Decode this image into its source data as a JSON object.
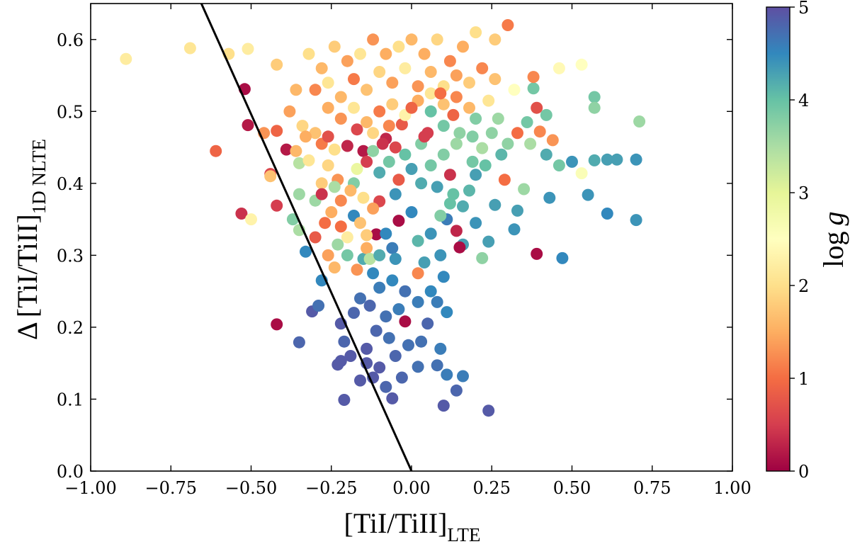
{
  "chart_data": {
    "type": "scatter",
    "title": "",
    "xlabel": "[TiI/TiII]",
    "xlabel_subscript": "LTE",
    "ylabel_prefix": "Δ",
    "ylabel": "[TiI/TiII]",
    "ylabel_subscript": "1D NLTE",
    "xlim": [
      -1.0,
      1.0
    ],
    "ylim": [
      0.0,
      0.65
    ],
    "x_ticks": [
      -1.0,
      -0.75,
      -0.5,
      -0.25,
      0.0,
      0.25,
      0.5,
      0.75,
      1.0
    ],
    "x_tick_labels": [
      "−1.00",
      "−0.75",
      "−0.50",
      "−0.25",
      "0.00",
      "0.25",
      "0.50",
      "0.75",
      "1.00"
    ],
    "y_ticks": [
      0.0,
      0.1,
      0.2,
      0.3,
      0.4,
      0.5,
      0.6
    ],
    "y_tick_labels": [
      "0.0",
      "0.1",
      "0.2",
      "0.3",
      "0.4",
      "0.5",
      "0.6"
    ],
    "colorbar": {
      "label": "log g",
      "label_prefix": "log",
      "label_var": "g",
      "range": [
        0,
        5
      ],
      "ticks": [
        0,
        1,
        2,
        3,
        4,
        5
      ],
      "tick_labels": [
        "0",
        "1",
        "2",
        "3",
        "4",
        "5"
      ],
      "colormap": "Spectral",
      "stops": [
        "#9e0142",
        "#d53e4f",
        "#f46d43",
        "#fdae61",
        "#fee08b",
        "#ffffbf",
        "#e6f598",
        "#abdda4",
        "#66c2a5",
        "#3288bd",
        "#5e4fa2"
      ]
    },
    "reference_line": {
      "x": [
        -0.655,
        0.0
      ],
      "y": [
        0.65,
        0.0
      ],
      "color": "#000000"
    },
    "points": [
      [
        -0.89,
        0.573,
        2.2
      ],
      [
        -0.69,
        0.588,
        2.1
      ],
      [
        -0.57,
        0.58,
        2.0
      ],
      [
        -0.51,
        0.587,
        2.2
      ],
      [
        -0.42,
        0.565,
        1.8
      ],
      [
        -0.36,
        0.53,
        1.6
      ],
      [
        -0.61,
        0.445,
        0.9
      ],
      [
        -0.52,
        0.531,
        0.1
      ],
      [
        -0.51,
        0.481,
        0.2
      ],
      [
        -0.46,
        0.47,
        1.3
      ],
      [
        -0.39,
        0.447,
        0.2
      ],
      [
        -0.42,
        0.473,
        0.9
      ],
      [
        -0.44,
        0.413,
        0.6
      ],
      [
        -0.53,
        0.358,
        0.4
      ],
      [
        -0.5,
        0.35,
        2.3
      ],
      [
        -0.42,
        0.369,
        0.5
      ],
      [
        -0.37,
        0.35,
        3.8
      ],
      [
        -0.44,
        0.41,
        1.7
      ],
      [
        -0.35,
        0.428,
        3.4
      ],
      [
        -0.35,
        0.385,
        3.6
      ],
      [
        -0.35,
        0.335,
        3.5
      ],
      [
        -0.33,
        0.305,
        4.5
      ],
      [
        -0.42,
        0.204,
        0.1
      ],
      [
        -0.35,
        0.179,
        4.8
      ],
      [
        -0.31,
        0.222,
        4.9
      ],
      [
        -0.28,
        0.265,
        4.5
      ],
      [
        -0.29,
        0.23,
        4.7
      ],
      [
        -0.24,
        0.283,
        1.6
      ],
      [
        -0.22,
        0.205,
        4.9
      ],
      [
        -0.21,
        0.18,
        4.8
      ],
      [
        -0.22,
        0.153,
        4.9
      ],
      [
        -0.19,
        0.16,
        4.9
      ],
      [
        -0.23,
        0.148,
        4.9
      ],
      [
        -0.21,
        0.099,
        4.9
      ],
      [
        -0.16,
        0.126,
        4.9
      ],
      [
        -0.14,
        0.15,
        4.9
      ],
      [
        -0.12,
        0.13,
        4.9
      ],
      [
        -0.1,
        0.144,
        4.9
      ],
      [
        -0.08,
        0.117,
        4.8
      ],
      [
        -0.06,
        0.101,
        4.9
      ],
      [
        -0.03,
        0.13,
        4.8
      ],
      [
        0.02,
        0.145,
        4.7
      ],
      [
        -0.02,
        0.208,
        0.1
      ],
      [
        0.1,
        0.091,
        4.9
      ],
      [
        0.24,
        0.084,
        4.9
      ],
      [
        0.14,
        0.112,
        4.8
      ],
      [
        0.16,
        0.132,
        4.6
      ],
      [
        0.11,
        0.134,
        4.6
      ],
      [
        0.08,
        0.147,
        4.7
      ],
      [
        0.09,
        0.17,
        4.6
      ],
      [
        0.05,
        0.205,
        4.8
      ],
      [
        0.11,
        0.221,
        4.5
      ],
      [
        0.08,
        0.235,
        4.6
      ],
      [
        0.1,
        0.27,
        4.5
      ],
      [
        0.02,
        0.275,
        1.2
      ],
      [
        0.09,
        0.3,
        4.4
      ],
      [
        0.16,
        0.315,
        4.3
      ],
      [
        0.22,
        0.296,
        3.7
      ],
      [
        0.24,
        0.319,
        4.3
      ],
      [
        0.2,
        0.345,
        4.4
      ],
      [
        0.26,
        0.37,
        4.3
      ],
      [
        0.32,
        0.336,
        4.4
      ],
      [
        0.33,
        0.362,
        4.3
      ],
      [
        0.39,
        0.302,
        0.1
      ],
      [
        0.47,
        0.296,
        4.5
      ],
      [
        0.55,
        0.384,
        4.4
      ],
      [
        0.61,
        0.358,
        4.5
      ],
      [
        0.7,
        0.349,
        4.4
      ],
      [
        0.43,
        0.38,
        4.4
      ],
      [
        0.35,
        0.392,
        3.6
      ],
      [
        0.29,
        0.405,
        1.0
      ],
      [
        0.2,
        0.412,
        4.3
      ],
      [
        0.12,
        0.412,
        0.4
      ],
      [
        0.13,
        0.385,
        4.0
      ],
      [
        0.08,
        0.395,
        4.3
      ],
      [
        0.14,
        0.334,
        0.3
      ],
      [
        0.15,
        0.311,
        0.1
      ],
      [
        0.11,
        0.35,
        4.6
      ],
      [
        -0.04,
        0.348,
        0.1
      ],
      [
        -0.11,
        0.329,
        0.1
      ],
      [
        -0.14,
        0.328,
        1.8
      ],
      [
        -0.1,
        0.375,
        0.6
      ],
      [
        -0.05,
        0.385,
        4.4
      ],
      [
        0.0,
        0.36,
        4.5
      ],
      [
        0.02,
        0.32,
        4.1
      ],
      [
        -0.06,
        0.31,
        4.6
      ],
      [
        -0.15,
        0.295,
        4.2
      ],
      [
        -0.18,
        0.355,
        4.5
      ],
      [
        -0.18,
        0.4,
        3.8
      ],
      [
        -0.22,
        0.376,
        1.2
      ],
      [
        -0.25,
        0.36,
        1.5
      ],
      [
        -0.28,
        0.4,
        1.8
      ],
      [
        -0.3,
        0.376,
        3.6
      ],
      [
        -0.26,
        0.425,
        1.9
      ],
      [
        -0.24,
        0.447,
        2.0
      ],
      [
        -0.2,
        0.452,
        0.3
      ],
      [
        -0.15,
        0.445,
        0.2
      ],
      [
        -0.08,
        0.462,
        0.3
      ],
      [
        -0.05,
        0.45,
        0.6
      ],
      [
        -0.03,
        0.482,
        0.8
      ],
      [
        0.03,
        0.455,
        3.8
      ],
      [
        0.0,
        0.42,
        4.3
      ],
      [
        -0.1,
        0.415,
        4.2
      ],
      [
        -0.14,
        0.43,
        0.5
      ],
      [
        -0.17,
        0.42,
        2.9
      ],
      [
        -0.23,
        0.405,
        1.3
      ],
      [
        0.05,
        0.47,
        0.5
      ],
      [
        0.06,
        0.5,
        4.0
      ],
      [
        0.1,
        0.48,
        3.9
      ],
      [
        0.15,
        0.47,
        3.7
      ],
      [
        0.19,
        0.465,
        3.8
      ],
      [
        0.22,
        0.449,
        3.5
      ],
      [
        0.27,
        0.49,
        3.6
      ],
      [
        0.33,
        0.47,
        1.0
      ],
      [
        0.36,
        0.485,
        3.9
      ],
      [
        0.39,
        0.505,
        0.7
      ],
      [
        0.4,
        0.472,
        1.2
      ],
      [
        0.42,
        0.495,
        3.9
      ],
      [
        0.37,
        0.455,
        3.5
      ],
      [
        0.44,
        0.46,
        1.3
      ],
      [
        0.38,
        0.532,
        3.9
      ],
      [
        0.42,
        0.44,
        4.2
      ],
      [
        0.46,
        0.425,
        3.9
      ],
      [
        0.5,
        0.43,
        4.4
      ],
      [
        0.53,
        0.414,
        2.6
      ],
      [
        0.57,
        0.52,
        3.9
      ],
      [
        0.57,
        0.505,
        3.7
      ],
      [
        0.57,
        0.432,
        4.2
      ],
      [
        0.61,
        0.433,
        4.3
      ],
      [
        0.64,
        0.433,
        4.3
      ],
      [
        0.7,
        0.433,
        4.4
      ],
      [
        0.71,
        0.486,
        3.6
      ],
      [
        0.53,
        0.565,
        2.5
      ],
      [
        0.46,
        0.56,
        2.4
      ],
      [
        0.38,
        0.548,
        1.2
      ],
      [
        0.32,
        0.53,
        2.5
      ],
      [
        0.3,
        0.62,
        1.1
      ],
      [
        0.26,
        0.6,
        1.8
      ],
      [
        0.2,
        0.61,
        2.0
      ],
      [
        0.16,
        0.59,
        1.5
      ],
      [
        0.12,
        0.57,
        1.2
      ],
      [
        0.08,
        0.6,
        1.9
      ],
      [
        0.04,
        0.58,
        1.5
      ],
      [
        0.0,
        0.6,
        1.6
      ],
      [
        -0.04,
        0.59,
        2.0
      ],
      [
        -0.08,
        0.58,
        1.5
      ],
      [
        -0.12,
        0.6,
        1.3
      ],
      [
        -0.16,
        0.58,
        2.1
      ],
      [
        -0.2,
        0.57,
        1.4
      ],
      [
        -0.24,
        0.59,
        1.8
      ],
      [
        -0.28,
        0.56,
        1.6
      ],
      [
        -0.32,
        0.58,
        2.0
      ],
      [
        -0.3,
        0.53,
        1.2
      ],
      [
        -0.26,
        0.54,
        2.1
      ],
      [
        -0.22,
        0.52,
        1.6
      ],
      [
        -0.18,
        0.545,
        1.1
      ],
      [
        -0.14,
        0.53,
        1.7
      ],
      [
        -0.1,
        0.555,
        1.9
      ],
      [
        -0.06,
        0.54,
        1.4
      ],
      [
        -0.02,
        0.56,
        2.2
      ],
      [
        0.02,
        0.535,
        1.3
      ],
      [
        0.06,
        0.555,
        1.6
      ],
      [
        0.1,
        0.535,
        2.0
      ],
      [
        0.14,
        0.55,
        1.4
      ],
      [
        0.18,
        0.54,
        1.8
      ],
      [
        0.22,
        0.56,
        1.2
      ],
      [
        0.26,
        0.545,
        1.7
      ],
      [
        -0.26,
        0.505,
        1.5
      ],
      [
        -0.22,
        0.49,
        1.3
      ],
      [
        -0.18,
        0.505,
        2.1
      ],
      [
        -0.14,
        0.485,
        1.6
      ],
      [
        -0.1,
        0.5,
        1.1
      ],
      [
        -0.06,
        0.51,
        1.8
      ],
      [
        -0.02,
        0.495,
        2.3
      ],
      [
        0.02,
        0.515,
        1.5
      ],
      [
        0.06,
        0.525,
        2.1
      ],
      [
        0.1,
        0.51,
        1.7
      ],
      [
        0.14,
        0.52,
        1.2
      ],
      [
        0.18,
        0.505,
        1.6
      ],
      [
        0.24,
        0.515,
        2.1
      ],
      [
        -0.3,
        0.47,
        1.7
      ],
      [
        -0.34,
        0.48,
        1.9
      ],
      [
        -0.38,
        0.5,
        1.4
      ],
      [
        -0.36,
        0.445,
        1.6
      ],
      [
        -0.32,
        0.432,
        2.1
      ],
      [
        -0.28,
        0.455,
        1.1
      ],
      [
        -0.12,
        0.47,
        1.9
      ],
      [
        -0.07,
        0.48,
        1.2
      ],
      [
        -0.19,
        0.39,
        1.6
      ],
      [
        -0.15,
        0.38,
        2.0
      ],
      [
        -0.12,
        0.365,
        1.4
      ],
      [
        -0.16,
        0.345,
        1.7
      ],
      [
        -0.2,
        0.325,
        2.2
      ],
      [
        -0.14,
        0.31,
        1.5
      ],
      [
        -0.17,
        0.28,
        1.3
      ],
      [
        -0.13,
        0.295,
        3.4
      ],
      [
        -0.1,
        0.3,
        4.2
      ],
      [
        -0.08,
        0.33,
        4.5
      ],
      [
        -0.05,
        0.295,
        4.4
      ],
      [
        -0.12,
        0.275,
        4.5
      ],
      [
        -0.1,
        0.255,
        4.6
      ],
      [
        -0.06,
        0.265,
        4.5
      ],
      [
        -0.02,
        0.25,
        4.7
      ],
      [
        0.02,
        0.235,
        4.6
      ],
      [
        -0.04,
        0.225,
        4.6
      ],
      [
        -0.08,
        0.215,
        4.7
      ],
      [
        -0.13,
        0.23,
        4.8
      ],
      [
        -0.16,
        0.24,
        4.7
      ],
      [
        -0.18,
        0.22,
        4.8
      ],
      [
        -0.11,
        0.195,
        4.8
      ],
      [
        -0.07,
        0.185,
        4.7
      ],
      [
        -0.14,
        0.17,
        4.9
      ],
      [
        -0.05,
        0.16,
        4.8
      ],
      [
        -0.01,
        0.175,
        4.7
      ],
      [
        0.03,
        0.18,
        4.7
      ],
      [
        0.06,
        0.25,
        4.5
      ],
      [
        0.04,
        0.29,
        4.3
      ],
      [
        0.06,
        0.33,
        4.4
      ],
      [
        0.09,
        0.355,
        3.8
      ],
      [
        0.12,
        0.372,
        4.0
      ],
      [
        0.16,
        0.368,
        4.2
      ],
      [
        0.18,
        0.39,
        4.1
      ],
      [
        0.19,
        0.43,
        3.9
      ],
      [
        0.23,
        0.425,
        4.0
      ],
      [
        0.28,
        0.44,
        4.1
      ],
      [
        0.3,
        0.455,
        3.7
      ],
      [
        0.03,
        0.4,
        4.2
      ],
      [
        0.06,
        0.425,
        3.9
      ],
      [
        0.1,
        0.44,
        3.8
      ],
      [
        0.14,
        0.455,
        3.6
      ],
      [
        -0.02,
        0.44,
        4.0
      ],
      [
        -0.07,
        0.43,
        3.9
      ],
      [
        -0.12,
        0.445,
        3.7
      ],
      [
        -0.24,
        0.395,
        3.5
      ],
      [
        -0.27,
        0.345,
        1.0
      ],
      [
        -0.3,
        0.325,
        0.8
      ],
      [
        -0.23,
        0.315,
        3.6
      ],
      [
        -0.26,
        0.3,
        1.4
      ],
      [
        -0.2,
        0.3,
        3.9
      ],
      [
        -0.22,
        0.34,
        1.0
      ],
      [
        -0.28,
        0.385,
        0.4
      ],
      [
        -0.26,
        0.465,
        0.7
      ],
      [
        -0.33,
        0.465,
        1.5
      ],
      [
        -0.04,
        0.405,
        0.8
      ],
      [
        0.0,
        0.505,
        0.9
      ],
      [
        0.04,
        0.465,
        0.5
      ],
      [
        -0.09,
        0.455,
        0.4
      ],
      [
        -0.17,
        0.475,
        0.6
      ],
      [
        0.13,
        0.495,
        0.9
      ],
      [
        0.09,
        0.525,
        1.0
      ],
      [
        0.2,
        0.49,
        3.8
      ],
      [
        0.25,
        0.47,
        3.7
      ]
    ]
  }
}
